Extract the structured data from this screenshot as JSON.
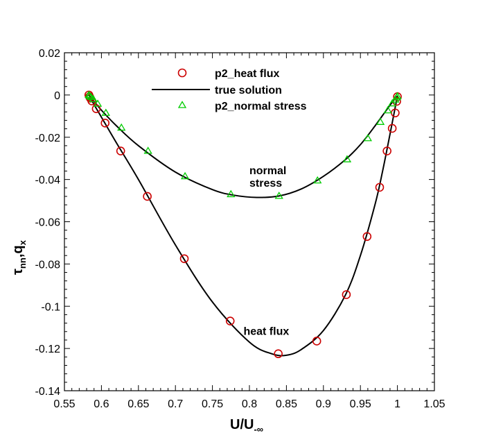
{
  "chart_data": {
    "type": "line",
    "title": "",
    "xlabel": {
      "main": "U/U",
      "sub": "-∞"
    },
    "ylabel": {
      "part1": "τ",
      "sub1": "nn",
      "part2": ",q",
      "sub2": "x"
    },
    "xlim": [
      0.55,
      1.05
    ],
    "ylim": [
      -0.14,
      0.02
    ],
    "x_ticks": [
      0.55,
      0.6,
      0.65,
      0.7,
      0.75,
      0.8,
      0.85,
      0.9,
      0.95,
      1,
      1.05
    ],
    "x_tick_labels": [
      "0.55",
      "0.6",
      "0.65",
      "0.7",
      "0.75",
      "0.8",
      "0.85",
      "0.9",
      "0.95",
      "1",
      "1.05"
    ],
    "y_ticks": [
      0.02,
      0,
      -0.02,
      -0.04,
      -0.06,
      -0.08,
      -0.1,
      -0.12,
      -0.14
    ],
    "y_tick_labels": [
      "0.02",
      "0",
      "-0.02",
      "-0.04",
      "-0.06",
      "-0.08",
      "-0.1",
      "-0.12",
      "-0.14"
    ],
    "grid": false,
    "legend_position": "top-center",
    "legend": [
      {
        "label": "p2_heat flux",
        "marker": "circle",
        "color": "#cc0000"
      },
      {
        "label": "true solution",
        "marker": "line",
        "color": "#000000"
      },
      {
        "label": "p2_normal stress",
        "marker": "triangle",
        "color": "#00cc00"
      }
    ],
    "annotations": [
      {
        "lines": [
          "normal",
          "stress"
        ],
        "x": 0.8,
        "y": -0.0375
      },
      {
        "lines": [
          "heat flux"
        ],
        "x": 0.792,
        "y": -0.1135
      }
    ],
    "series": [
      {
        "name": "p2_heat flux",
        "type": "scatter",
        "marker": "circle",
        "color": "#cc0000",
        "x": [
          0.583,
          0.584,
          0.585,
          0.587,
          0.593,
          0.605,
          0.626,
          0.662,
          0.712,
          0.774,
          0.839,
          0.891,
          0.931,
          0.959,
          0.976,
          0.986,
          0.993,
          0.997,
          0.999,
          1.0
        ],
        "y": [
          0.0,
          -0.0008,
          -0.0015,
          -0.0028,
          -0.0065,
          -0.0133,
          -0.0265,
          -0.048,
          -0.0775,
          -0.107,
          -0.1225,
          -0.1165,
          -0.0945,
          -0.067,
          -0.0437,
          -0.0265,
          -0.0158,
          -0.0085,
          -0.003,
          -0.0008
        ]
      },
      {
        "name": "p2_normal stress",
        "type": "scatter",
        "marker": "triangle",
        "color": "#00cc00",
        "x": [
          0.583,
          0.584,
          0.586,
          0.589,
          0.595,
          0.606,
          0.627,
          0.663,
          0.713,
          0.775,
          0.84,
          0.892,
          0.932,
          0.96,
          0.977,
          0.987,
          0.993,
          0.997,
          0.999,
          1.0
        ],
        "y": [
          0.0,
          -0.0005,
          -0.001,
          -0.002,
          -0.0042,
          -0.0085,
          -0.0155,
          -0.0265,
          -0.0385,
          -0.047,
          -0.0478,
          -0.0405,
          -0.0305,
          -0.0205,
          -0.0128,
          -0.0073,
          -0.004,
          -0.0022,
          -0.0012,
          -0.0006
        ]
      },
      {
        "name": "true solution (heat flux)",
        "type": "line",
        "color": "#000000",
        "x": [
          0.583,
          0.59,
          0.6,
          0.62,
          0.65,
          0.7,
          0.75,
          0.8,
          0.83,
          0.85,
          0.87,
          0.9,
          0.93,
          0.95,
          0.97,
          0.98,
          0.99,
          0.995,
          1.0
        ],
        "y": [
          0.0,
          -0.0045,
          -0.0105,
          -0.0225,
          -0.04,
          -0.071,
          -0.098,
          -0.117,
          -0.1225,
          -0.1232,
          -0.1205,
          -0.1115,
          -0.0945,
          -0.076,
          -0.0515,
          -0.036,
          -0.0185,
          -0.0095,
          -0.0005
        ]
      },
      {
        "name": "true solution (normal stress)",
        "type": "line",
        "color": "#000000",
        "x": [
          0.583,
          0.59,
          0.6,
          0.62,
          0.65,
          0.7,
          0.75,
          0.78,
          0.81,
          0.84,
          0.87,
          0.9,
          0.93,
          0.95,
          0.97,
          0.985,
          0.995,
          1.0
        ],
        "y": [
          0.0,
          -0.003,
          -0.0072,
          -0.0145,
          -0.024,
          -0.0365,
          -0.0448,
          -0.0475,
          -0.0485,
          -0.0478,
          -0.0445,
          -0.0385,
          -0.0305,
          -0.0235,
          -0.0145,
          -0.0072,
          -0.0025,
          -0.0005
        ]
      }
    ]
  }
}
